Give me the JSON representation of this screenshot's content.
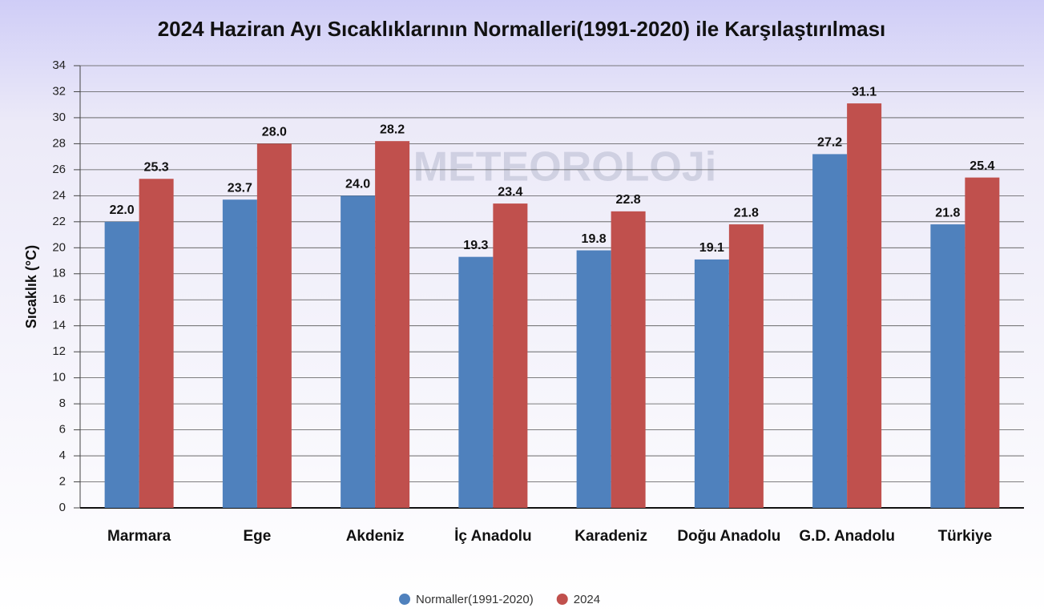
{
  "chart_data": {
    "type": "bar",
    "title": "2024 Haziran Ayı Sıcaklıklarının Normalleri(1991-2020) ile Karşılaştırılması",
    "watermark": "METEOROLOJi",
    "y_label": "Sıcaklık (°C)",
    "categories": [
      "Marmara",
      "Ege",
      "Akdeniz",
      "İç Anadolu",
      "Karadeniz",
      "Doğu Anadolu",
      "G.D. Anadolu",
      "Türkiye"
    ],
    "series": [
      {
        "name": "Normaller(1991-2020)",
        "color": "#4f81bd",
        "values": [
          22,
          23.7,
          24,
          19.3,
          19.8,
          19.1,
          27.2,
          21.8
        ],
        "value_labels": [
          "22.0",
          "23.7",
          "24.0",
          "19.3",
          "19.8",
          "19.1",
          "27.2",
          "21.8"
        ]
      },
      {
        "name": "2024",
        "color": "#c0504d",
        "values": [
          25.3,
          28,
          28.2,
          23.4,
          22.8,
          21.8,
          31.1,
          25.4
        ],
        "value_labels": [
          "25.3",
          "28.0",
          "28.2",
          "23.4",
          "22.8",
          "21.8",
          "31.1",
          "25.4"
        ]
      }
    ],
    "ylim": [
      0,
      34
    ],
    "yticks": [
      0,
      2,
      4,
      6,
      8,
      10,
      12,
      14,
      16,
      18,
      20,
      22,
      24,
      26,
      28,
      30,
      32,
      34
    ],
    "grid": true,
    "legend": "bottom"
  }
}
